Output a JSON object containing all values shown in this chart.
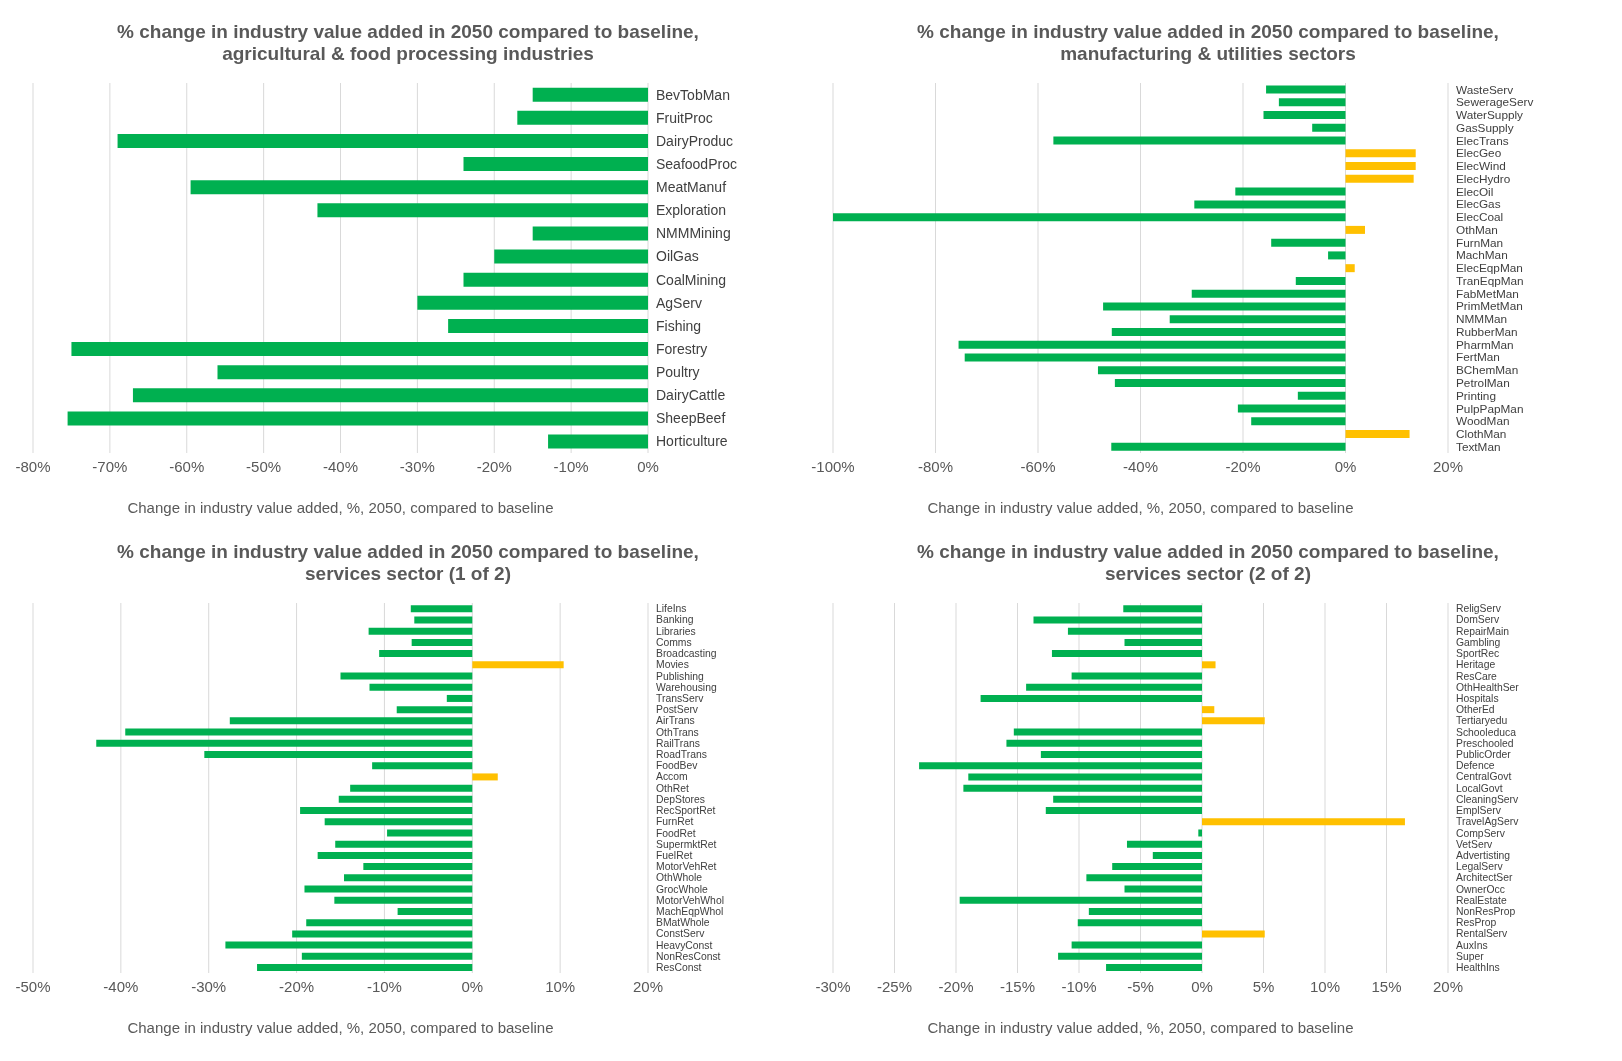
{
  "chart_data": [
    {
      "type": "bar",
      "orientation": "horizontal",
      "title": "% change in industry value added in 2050 compared to baseline, agricultural & food processing industries",
      "xlabel": "Change in industry value added, %, 2050, compared to baseline",
      "grid": "x",
      "categories": [
        "BevTobMan",
        "FruitProc",
        "DairyProduc",
        "SeafoodProc",
        "MeatManuf",
        "Exploration",
        "NMMMining",
        "OilGas",
        "CoalMining",
        "AgServ",
        "Fishing",
        "Forestry",
        "Poultry",
        "DairyCattle",
        "SheepBeef",
        "Horticulture"
      ],
      "values": [
        -15,
        -17,
        -69,
        -24,
        -59.5,
        -43,
        -15,
        -20,
        -24,
        -30,
        -26,
        -75,
        -56,
        -67,
        -75.5,
        -13
      ],
      "colors": [
        "#00b050",
        "#00b050",
        "#00b050",
        "#00b050",
        "#00b050",
        "#00b050",
        "#00b050",
        "#00b050",
        "#00b050",
        "#00b050",
        "#00b050",
        "#00b050",
        "#00b050",
        "#00b050",
        "#00b050",
        "#00b050"
      ],
      "xlim": [
        -80,
        0
      ],
      "xticks": [
        {
          "value": -80,
          "label": "-80%"
        },
        {
          "value": -70,
          "label": "-70%"
        },
        {
          "value": -60,
          "label": "-60%"
        },
        {
          "value": -50,
          "label": "-50%"
        },
        {
          "value": -40,
          "label": "-40%"
        },
        {
          "value": -30,
          "label": "-30%"
        },
        {
          "value": -20,
          "label": "-20%"
        },
        {
          "value": -10,
          "label": "-10%"
        },
        {
          "value": 0,
          "label": "0%"
        }
      ]
    },
    {
      "type": "bar",
      "orientation": "horizontal",
      "title": "% change in industry value added in 2050 compared to baseline, manufacturing & utilities sectors",
      "xlabel": "Change in industry value added, %, 2050, compared to baseline",
      "grid": "x",
      "categories": [
        "WasteServ",
        "SewerageServ",
        "WaterSupply",
        "GasSupply",
        "ElecTrans",
        "ElecGeo",
        "ElecWind",
        "ElecHydro",
        "ElecOil",
        "ElecGas",
        "ElecCoal",
        "OthMan",
        "FurnMan",
        "MachMan",
        "ElecEqpMan",
        "TranEqpMan",
        "FabMetMan",
        "PrimMetMan",
        "NMMMan",
        "RubberMan",
        "PharmMan",
        "FertMan",
        "BChemMan",
        "PetrolMan",
        "Printing",
        "PulpPapMan",
        "WoodMan",
        "ClothMan",
        "TextMan"
      ],
      "values": [
        -15.5,
        -13,
        -16,
        -6.5,
        -57,
        13.7,
        13.7,
        13.3,
        -21.5,
        -29.5,
        -100,
        3.8,
        -14.5,
        -3.4,
        1.8,
        -9.7,
        -30,
        -47.3,
        -34.3,
        -45.6,
        -75.5,
        -74.3,
        -48.3,
        -45,
        -9.3,
        -21,
        -18.4,
        12.5,
        -45.7
      ],
      "colors": [
        "#00b050",
        "#00b050",
        "#00b050",
        "#00b050",
        "#00b050",
        "#ffc000",
        "#ffc000",
        "#ffc000",
        "#00b050",
        "#00b050",
        "#00b050",
        "#ffc000",
        "#00b050",
        "#00b050",
        "#ffc000",
        "#00b050",
        "#00b050",
        "#00b050",
        "#00b050",
        "#00b050",
        "#00b050",
        "#00b050",
        "#00b050",
        "#00b050",
        "#00b050",
        "#00b050",
        "#00b050",
        "#ffc000",
        "#00b050"
      ],
      "xlim": [
        -100,
        20
      ],
      "xticks": [
        {
          "value": -100,
          "label": "-100%"
        },
        {
          "value": -80,
          "label": "-80%"
        },
        {
          "value": -60,
          "label": "-60%"
        },
        {
          "value": -40,
          "label": "-40%"
        },
        {
          "value": -20,
          "label": "-20%"
        },
        {
          "value": 0,
          "label": "0%"
        },
        {
          "value": 20,
          "label": "20%"
        }
      ]
    },
    {
      "type": "bar",
      "orientation": "horizontal",
      "title": "% change in industry value added in 2050 compared to baseline, services sector (1 of 2)",
      "xlabel": "Change in industry value added, %, 2050, compared to baseline",
      "grid": "x",
      "categories": [
        "LifeIns",
        "Banking",
        "Libraries",
        "Comms",
        "Broadcasting",
        "Movies",
        "Publishing",
        "Warehousing",
        "TransServ",
        "PostServ",
        "AirTrans",
        "OthTrans",
        "RailTrans",
        "RoadTrans",
        "FoodBev",
        "Accom",
        "OthRet",
        "DepStores",
        "RecSportRet",
        "FurnRet",
        "FoodRet",
        "SupermktRet",
        "FuelRet",
        "MotorVehRet",
        "OthWhole",
        "GrocWhole",
        "MotorVehWhol",
        "MachEqpWhol",
        "BMatWhole",
        "ConstServ",
        "HeavyConst",
        "NonResConst",
        "ResConst"
      ],
      "values": [
        -7,
        -6.6,
        -11.8,
        -6.9,
        -10.6,
        10.4,
        -15,
        -11.7,
        -2.9,
        -8.6,
        -27.6,
        -39.5,
        -42.8,
        -30.5,
        -11.4,
        2.9,
        -13.9,
        -15.2,
        -19.6,
        -16.8,
        -9.7,
        -15.6,
        -17.6,
        -12.4,
        -14.6,
        -19.1,
        -15.7,
        -8.5,
        -18.9,
        -20.5,
        -28.1,
        -19.4,
        -24.5
      ],
      "colors": [
        "#00b050",
        "#00b050",
        "#00b050",
        "#00b050",
        "#00b050",
        "#ffc000",
        "#00b050",
        "#00b050",
        "#00b050",
        "#00b050",
        "#00b050",
        "#00b050",
        "#00b050",
        "#00b050",
        "#00b050",
        "#ffc000",
        "#00b050",
        "#00b050",
        "#00b050",
        "#00b050",
        "#00b050",
        "#00b050",
        "#00b050",
        "#00b050",
        "#00b050",
        "#00b050",
        "#00b050",
        "#00b050",
        "#00b050",
        "#00b050",
        "#00b050",
        "#00b050",
        "#00b050"
      ],
      "xlim": [
        -50,
        20
      ],
      "xticks": [
        {
          "value": -50,
          "label": "-50%"
        },
        {
          "value": -40,
          "label": "-40%"
        },
        {
          "value": -30,
          "label": "-30%"
        },
        {
          "value": -20,
          "label": "-20%"
        },
        {
          "value": -10,
          "label": "-10%"
        },
        {
          "value": 0,
          "label": "0%"
        },
        {
          "value": 10,
          "label": "10%"
        },
        {
          "value": 20,
          "label": "20%"
        }
      ]
    },
    {
      "type": "bar",
      "orientation": "horizontal",
      "title": "% change in industry value added in 2050 compared to baseline, services sector (2 of 2)",
      "xlabel": "Change in industry value added, %, 2050, compared to baseline",
      "grid": "x",
      "categories": [
        "ReligServ",
        "DomServ",
        "RepairMain",
        "Gambling",
        "SportRec",
        "Heritage",
        "ResCare",
        "OthHealthSer",
        "Hospitals",
        "OtherEd",
        "Tertiaryedu",
        "Schooleduca",
        "Preschooled",
        "PublicOrder",
        "Defence",
        "CentralGovt",
        "LocalGovt",
        "CleaningServ",
        "EmplServ",
        "TravelAgServ",
        "CompServ",
        "VetServ",
        "Advertisting",
        "LegalServ",
        "ArchitectSer",
        "OwnerOcc",
        "RealEstate",
        "NonResProp",
        "ResProp",
        "RentalServ",
        "AuxIns",
        "Super",
        "HealthIns"
      ],
      "values": [
        -6.4,
        -13.7,
        -10.9,
        -6.3,
        -12.2,
        1.1,
        -10.6,
        -14.3,
        -18,
        1,
        5.1,
        -15.3,
        -15.9,
        -13.1,
        -23,
        -19,
        -19.4,
        -12.1,
        -12.7,
        16.5,
        -0.3,
        -6.1,
        -4,
        -7.3,
        -9.4,
        -6.3,
        -19.7,
        -9.2,
        -10.1,
        5.1,
        -10.6,
        -11.7,
        -7.8
      ],
      "colors": [
        "#00b050",
        "#00b050",
        "#00b050",
        "#00b050",
        "#00b050",
        "#ffc000",
        "#00b050",
        "#00b050",
        "#00b050",
        "#ffc000",
        "#ffc000",
        "#00b050",
        "#00b050",
        "#00b050",
        "#00b050",
        "#00b050",
        "#00b050",
        "#00b050",
        "#00b050",
        "#ffc000",
        "#00b050",
        "#00b050",
        "#00b050",
        "#00b050",
        "#00b050",
        "#00b050",
        "#00b050",
        "#00b050",
        "#00b050",
        "#ffc000",
        "#00b050",
        "#00b050",
        "#00b050"
      ],
      "xlim": [
        -30,
        20
      ],
      "xticks": [
        {
          "value": -30,
          "label": "-30%"
        },
        {
          "value": -25,
          "label": "-25%"
        },
        {
          "value": -20,
          "label": "-20%"
        },
        {
          "value": -15,
          "label": "-15%"
        },
        {
          "value": -10,
          "label": "-10%"
        },
        {
          "value": -5,
          "label": "-5%"
        },
        {
          "value": 0,
          "label": "0%"
        },
        {
          "value": 5,
          "label": "5%"
        },
        {
          "value": 10,
          "label": "10%"
        },
        {
          "value": 15,
          "label": "15%"
        },
        {
          "value": 20,
          "label": "20%"
        }
      ]
    }
  ]
}
